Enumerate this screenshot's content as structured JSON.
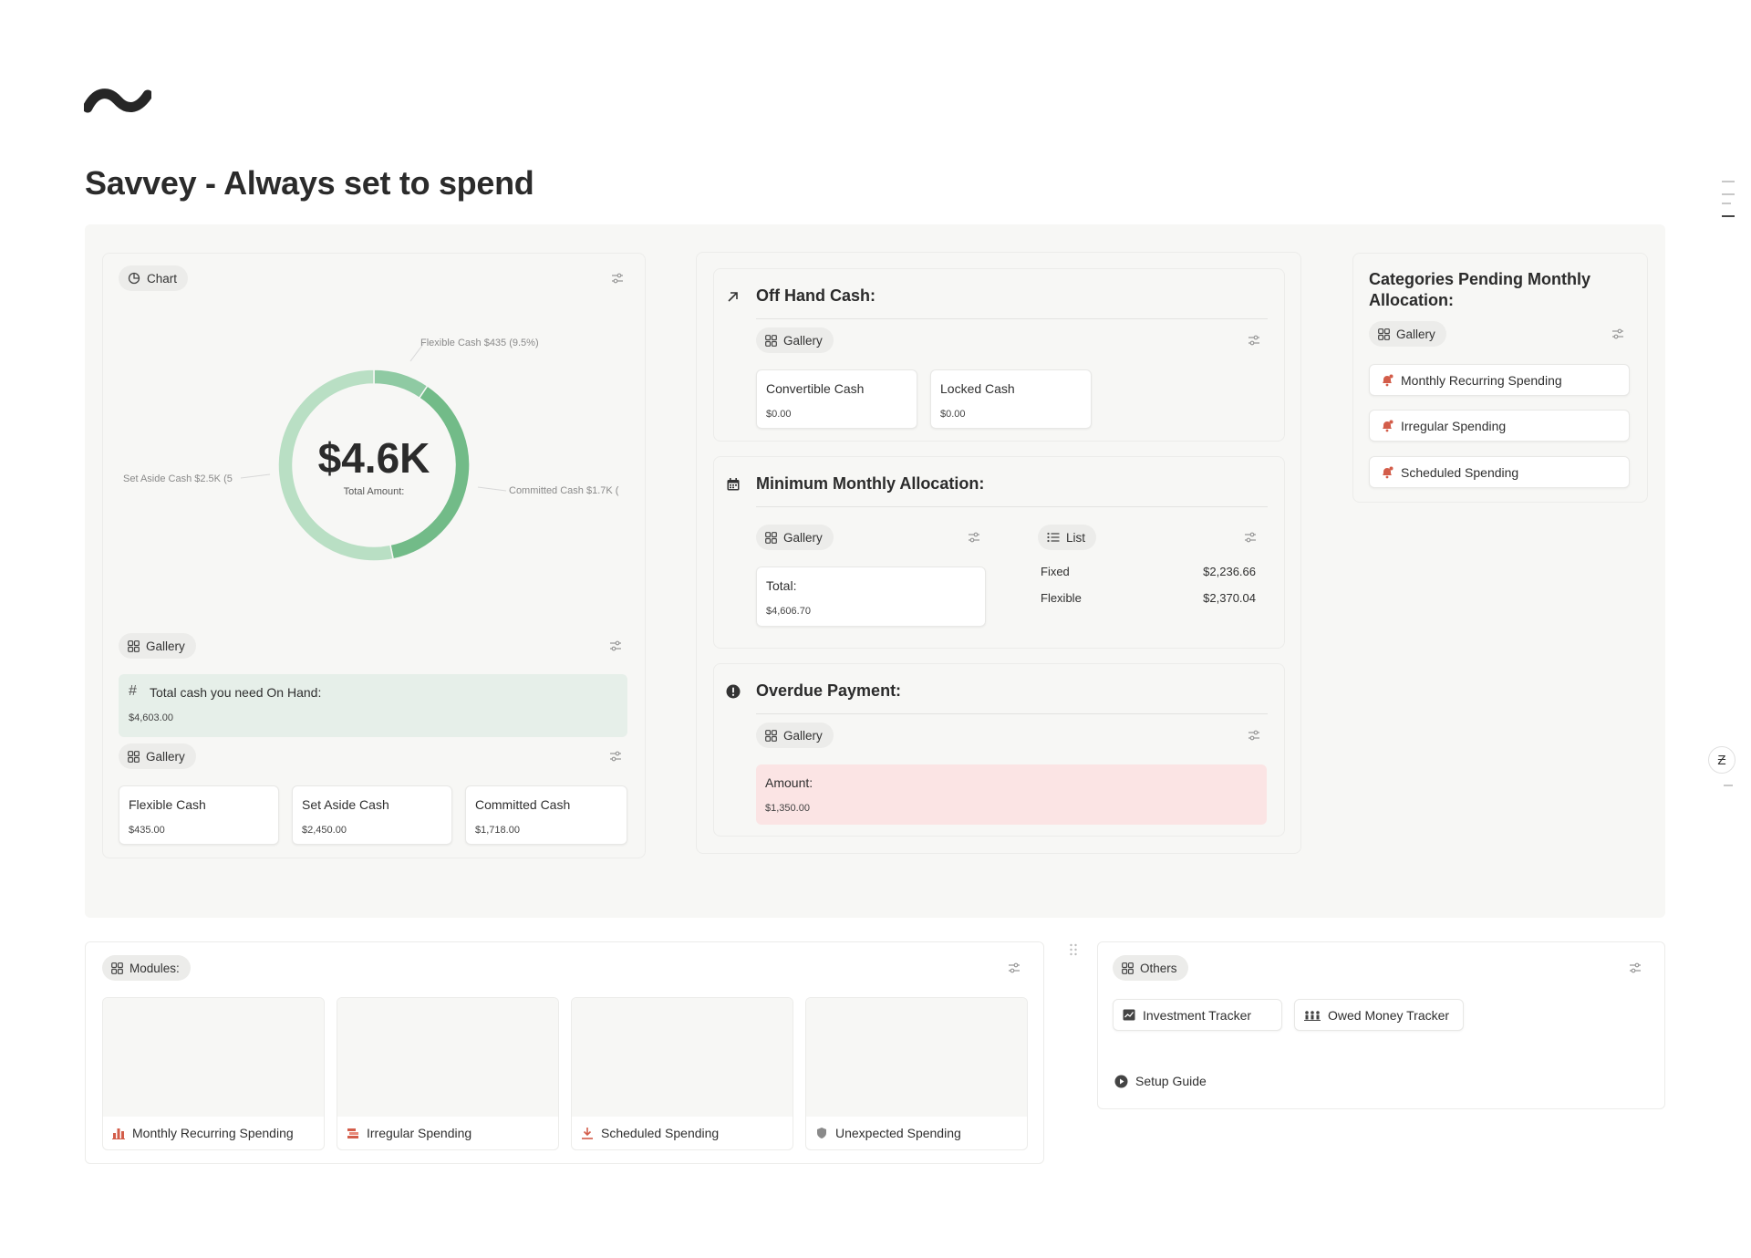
{
  "page": {
    "title": "Savvey - Always set to spend"
  },
  "chart_panel": {
    "view_label": "Chart",
    "chart_data": {
      "type": "pie",
      "center_value": "$4.6K",
      "center_caption": "Total Amount:",
      "slices": [
        {
          "name": "Flexible Cash",
          "value": 435,
          "percent": 9.5,
          "label": "Flexible Cash  $435 (9.5%)",
          "color": "#8fcaa3"
        },
        {
          "name": "Committed Cash",
          "value": 1718,
          "label": "Committed Cash  $1.7K (",
          "color": "#72bb88"
        },
        {
          "name": "Set Aside Cash",
          "value": 2450,
          "label": "Set Aside Cash  $2.5K (5",
          "color": "#b9dfc4"
        }
      ]
    },
    "gallery1_label": "Gallery",
    "total_on_hand": {
      "title": "Total cash you need On Hand:",
      "value": "$4,603.00"
    },
    "gallery2_label": "Gallery",
    "cards": [
      {
        "title": "Flexible Cash",
        "value": "$435.00"
      },
      {
        "title": "Set Aside Cash",
        "value": "$2,450.00"
      },
      {
        "title": "Committed Cash",
        "value": "$1,718.00"
      }
    ]
  },
  "off_hand": {
    "heading": "Off Hand Cash:",
    "gallery_label": "Gallery",
    "cards": [
      {
        "title": "Convertible Cash",
        "value": "$0.00"
      },
      {
        "title": "Locked Cash",
        "value": "$0.00"
      }
    ]
  },
  "min_monthly": {
    "heading": "Minimum Monthly Allocation:",
    "gallery_label": "Gallery",
    "list_label": "List",
    "total_card": {
      "title": "Total:",
      "value": "$4,606.70"
    },
    "list_rows": [
      {
        "name": "Fixed",
        "value": "$2,236.66"
      },
      {
        "name": "Flexible",
        "value": "$2,370.04"
      }
    ]
  },
  "overdue": {
    "heading": "Overdue Payment:",
    "gallery_label": "Gallery",
    "card": {
      "title": "Amount:",
      "value": "$1,350.00"
    }
  },
  "categories_pending": {
    "heading": "Categories Pending Monthly Allocation:",
    "gallery_label": "Gallery",
    "items": [
      "Monthly Recurring Spending",
      "Irregular Spending",
      "Scheduled Spending"
    ]
  },
  "modules": {
    "label": "Modules:",
    "items": [
      {
        "label": "Monthly Recurring Spending",
        "icon": "bar-chart-icon"
      },
      {
        "label": "Irregular Spending",
        "icon": "stack-icon"
      },
      {
        "label": "Scheduled Spending",
        "icon": "download-icon"
      },
      {
        "label": "Unexpected Spending",
        "icon": "shield-icon"
      }
    ]
  },
  "others": {
    "label": "Others",
    "items": [
      {
        "label": "Investment Tracker",
        "icon": "chart-card-icon"
      },
      {
        "label": "Owed Money Tracker",
        "icon": "people-icon"
      }
    ],
    "setup_guide": "Setup Guide"
  },
  "colors": {
    "accent_green": "#72bb88",
    "overdue_bg": "#fbe4e4",
    "on_hand_bg": "#e6efe9",
    "category_icon": "#d35d4a"
  }
}
